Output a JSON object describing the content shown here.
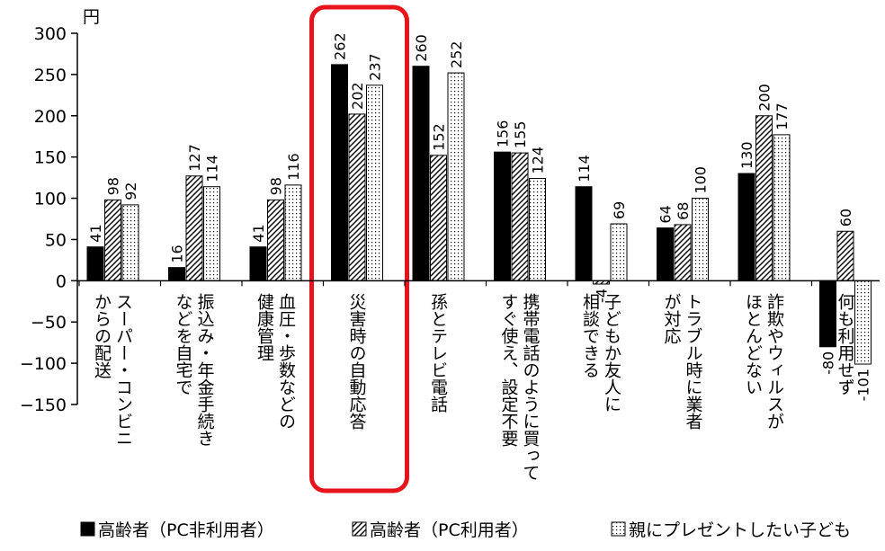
{
  "chart_data": {
    "type": "bar",
    "unit_label": "円",
    "ylim": [
      -150,
      300
    ],
    "yticks": [
      300,
      250,
      200,
      150,
      100,
      50,
      0,
      -50,
      -100,
      -150
    ],
    "categories": [
      [
        "スーパー・コンビニ",
        "からの配送"
      ],
      [
        "振込み・年金手続き",
        "などを自宅で"
      ],
      [
        "血圧・歩数などの",
        "健康管理"
      ],
      [
        "災害時の自動応答"
      ],
      [
        "孫とテレビ電話"
      ],
      [
        "携帯電話のように買って",
        "すぐ使え、設定不要"
      ],
      [
        "子どもか友人に",
        "相談できる"
      ],
      [
        "トラブル時に業者",
        "が対応"
      ],
      [
        "詐欺やウィルスが",
        "ほとんどない"
      ],
      [
        "何も利用せず"
      ]
    ],
    "series": [
      {
        "name": "高齢者（PC非利用者）",
        "fill": "solid",
        "values": [
          41,
          16,
          41,
          262,
          260,
          156,
          114,
          64,
          130,
          -80
        ]
      },
      {
        "name": "高齢者（PC利用者）",
        "fill": "hatch",
        "values": [
          98,
          127,
          98,
          202,
          152,
          155,
          -4,
          68,
          200,
          60
        ]
      },
      {
        "name": "親にプレゼントしたい子ども",
        "fill": "dots",
        "values": [
          92,
          114,
          116,
          237,
          252,
          124,
          69,
          100,
          177,
          -101
        ]
      }
    ],
    "highlight": {
      "category_index": 3,
      "color": "#e8141b"
    },
    "legend": "bottom"
  }
}
